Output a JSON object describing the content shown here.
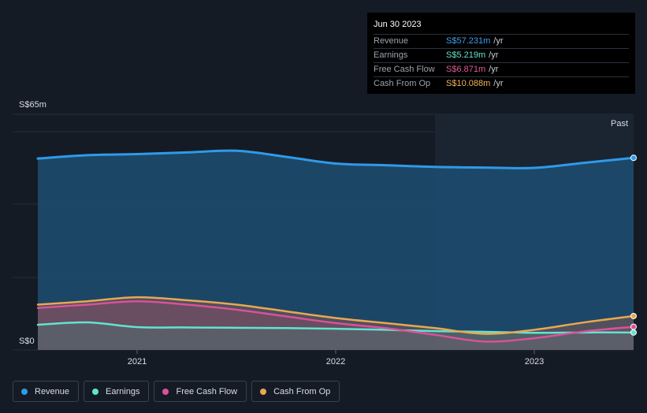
{
  "tooltip": {
    "date": "Jun 30 2023",
    "rows": [
      {
        "label": "Revenue",
        "value": "S$57.231m",
        "unit": "/yr",
        "color": "#3ea0f0"
      },
      {
        "label": "Earnings",
        "value": "S$5.219m",
        "unit": "/yr",
        "color": "#62e3d0"
      },
      {
        "label": "Free Cash Flow",
        "value": "S$6.871m",
        "unit": "/yr",
        "color": "#e05a9b"
      },
      {
        "label": "Cash From Op",
        "value": "S$10.088m",
        "unit": "/yr",
        "color": "#f5b25a"
      }
    ]
  },
  "past_label": "Past",
  "legend": [
    {
      "label": "Revenue",
      "color": "#2f9ae8"
    },
    {
      "label": "Earnings",
      "color": "#62e3d0"
    },
    {
      "label": "Free Cash Flow",
      "color": "#d9529a"
    },
    {
      "label": "Cash From Op",
      "color": "#e9a752"
    }
  ],
  "chart_data": {
    "type": "area",
    "y_top_label": "S$65m",
    "y_bottom_label": "S$0",
    "ylim": [
      0,
      65
    ],
    "xlim": [
      2020.5,
      2023.5
    ],
    "x_ticks": [
      {
        "label": "2021",
        "x": 2021.0
      },
      {
        "label": "2022",
        "x": 2022.0
      },
      {
        "label": "2023",
        "x": 2023.0
      }
    ],
    "past_start": 2022.5,
    "series": [
      {
        "name": "Revenue",
        "color": "#2f9ae8",
        "x": [
          2020.5,
          2020.75,
          2021.0,
          2021.25,
          2021.5,
          2021.75,
          2022.0,
          2022.25,
          2022.5,
          2022.75,
          2023.0,
          2023.25,
          2023.5
        ],
        "y": [
          57.0,
          58.0,
          58.3,
          58.8,
          59.3,
          57.5,
          55.5,
          55.0,
          54.5,
          54.3,
          54.2,
          55.7,
          57.2
        ]
      },
      {
        "name": "Earnings",
        "color": "#62e3d0",
        "x": [
          2020.5,
          2020.75,
          2021.0,
          2021.25,
          2021.5,
          2021.75,
          2022.0,
          2022.25,
          2022.5,
          2022.75,
          2023.0,
          2023.25,
          2023.5
        ],
        "y": [
          7.5,
          8.2,
          6.8,
          6.7,
          6.6,
          6.5,
          6.3,
          6.0,
          5.6,
          5.4,
          5.1,
          5.2,
          5.2
        ]
      },
      {
        "name": "Free Cash Flow",
        "color": "#d9529a",
        "x": [
          2020.5,
          2020.75,
          2021.0,
          2021.25,
          2021.5,
          2021.75,
          2022.0,
          2022.25,
          2022.5,
          2022.75,
          2023.0,
          2023.25,
          2023.5
        ],
        "y": [
          12.5,
          13.5,
          14.5,
          13.5,
          12.0,
          10.0,
          8.0,
          6.5,
          4.5,
          2.5,
          3.5,
          5.5,
          6.9
        ]
      },
      {
        "name": "Cash From Op",
        "color": "#e9a752",
        "x": [
          2020.5,
          2020.75,
          2021.0,
          2021.25,
          2021.5,
          2021.75,
          2022.0,
          2022.25,
          2022.5,
          2022.75,
          2023.0,
          2023.25,
          2023.5
        ],
        "y": [
          13.5,
          14.5,
          15.7,
          14.8,
          13.5,
          11.5,
          9.5,
          8.0,
          6.5,
          4.8,
          6.0,
          8.2,
          10.1
        ]
      }
    ]
  }
}
